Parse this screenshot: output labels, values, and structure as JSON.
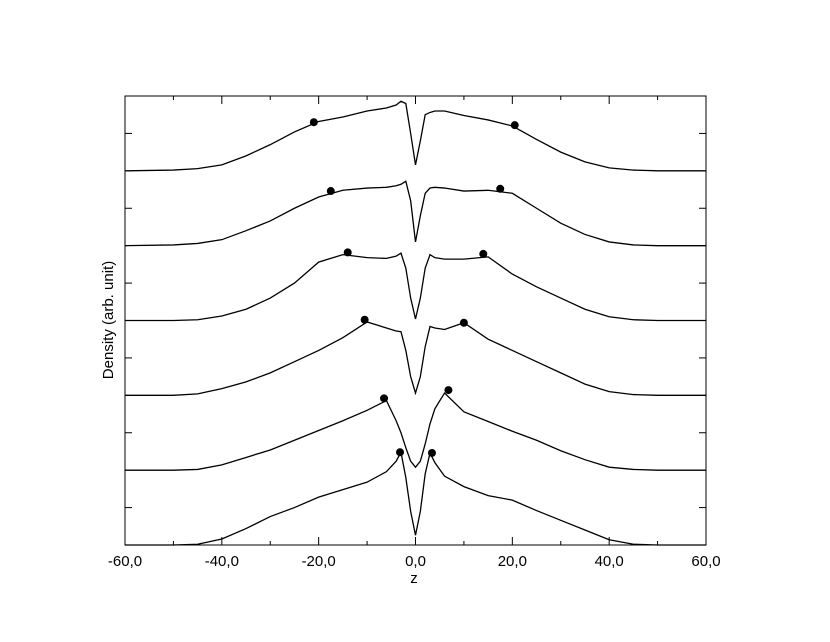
{
  "chart_data": {
    "type": "line",
    "xlabel": "z",
    "ylabel": "Density (arb. unit)",
    "xlim": [
      -60,
      60
    ],
    "ylim": [
      0,
      6
    ],
    "xticks": [
      {
        "value": -60,
        "label": "-60,0"
      },
      {
        "value": -40,
        "label": "-40,0"
      },
      {
        "value": -20,
        "label": "-20,0"
      },
      {
        "value": 0,
        "label": "0,0"
      },
      {
        "value": 20,
        "label": "20,0"
      },
      {
        "value": 40,
        "label": "40,0"
      },
      {
        "value": 60,
        "label": "60,0"
      }
    ],
    "xminorticks": [
      -50,
      -30,
      -10,
      10,
      30,
      50
    ],
    "yticks": [
      0.5,
      1.5,
      2.5,
      3.5,
      4.5,
      5.5
    ],
    "ytick_labels": false,
    "grid": false,
    "x": [
      -60,
      -50,
      -45,
      -40,
      -35,
      -30,
      -25,
      -20,
      -15,
      -10,
      -6,
      -4,
      -3,
      -2,
      -1,
      0,
      1,
      2,
      3,
      4,
      6,
      10,
      15,
      20,
      25,
      30,
      35,
      40,
      45,
      50,
      60
    ],
    "series": [
      {
        "color": "#000000",
        "values": [
          0,
          0,
          0.01,
          0.08,
          0.22,
          0.38,
          0.5,
          0.64,
          0.74,
          0.84,
          0.98,
          1.12,
          1.24,
          0.9,
          0.45,
          0.13,
          0.45,
          0.95,
          1.23,
          1.1,
          0.92,
          0.78,
          0.66,
          0.6,
          0.46,
          0.33,
          0.2,
          0.07,
          0.01,
          0,
          0
        ],
        "markers": {
          "x": [
            -3.2,
            3.4
          ],
          "y": [
            1.24,
            1.23
          ]
        }
      },
      {
        "color": "#000000",
        "values": [
          1,
          1,
          1.01,
          1.07,
          1.17,
          1.27,
          1.4,
          1.53,
          1.66,
          1.8,
          1.93,
          1.66,
          1.5,
          1.3,
          1.12,
          1.04,
          1.12,
          1.35,
          1.62,
          1.82,
          2.03,
          1.78,
          1.65,
          1.52,
          1.4,
          1.26,
          1.14,
          1.04,
          1.01,
          1,
          1
        ],
        "markers": {
          "x": [
            -6.5,
            6.8
          ],
          "y": [
            1.96,
            2.07
          ]
        }
      },
      {
        "color": "#000000",
        "values": [
          2,
          2,
          2.02,
          2.09,
          2.18,
          2.3,
          2.45,
          2.6,
          2.77,
          2.98,
          2.9,
          2.86,
          2.85,
          2.6,
          2.25,
          2.03,
          2.25,
          2.65,
          2.92,
          2.9,
          2.88,
          2.97,
          2.75,
          2.6,
          2.45,
          2.3,
          2.15,
          2.05,
          2.01,
          2,
          2
        ],
        "markers": {
          "x": [
            -10.5,
            10
          ],
          "y": [
            3.01,
            2.97
          ]
        }
      },
      {
        "color": "#000000",
        "values": [
          3,
          3,
          3.01,
          3.06,
          3.15,
          3.3,
          3.5,
          3.78,
          3.88,
          3.84,
          3.83,
          3.86,
          3.9,
          3.7,
          3.3,
          3.02,
          3.3,
          3.7,
          3.88,
          3.84,
          3.82,
          3.82,
          3.85,
          3.62,
          3.45,
          3.3,
          3.15,
          3.05,
          3.01,
          3,
          3
        ],
        "markers": {
          "x": [
            -14,
            14
          ],
          "y": [
            3.91,
            3.89
          ]
        }
      },
      {
        "color": "#000000",
        "values": [
          4,
          4.01,
          4.03,
          4.08,
          4.2,
          4.33,
          4.5,
          4.65,
          4.74,
          4.77,
          4.78,
          4.8,
          4.82,
          4.86,
          4.6,
          4.05,
          4.4,
          4.7,
          4.77,
          4.78,
          4.77,
          4.73,
          4.74,
          4.7,
          4.5,
          4.3,
          4.15,
          4.05,
          4.01,
          4,
          4
        ],
        "markers": {
          "x": [
            -17.5,
            17.5
          ],
          "y": [
            4.73,
            4.76
          ]
        }
      },
      {
        "color": "#000000",
        "values": [
          5,
          5.01,
          5.03,
          5.08,
          5.2,
          5.35,
          5.52,
          5.66,
          5.72,
          5.8,
          5.84,
          5.88,
          5.93,
          5.9,
          5.5,
          5.08,
          5.4,
          5.75,
          5.78,
          5.8,
          5.8,
          5.74,
          5.68,
          5.6,
          5.42,
          5.25,
          5.12,
          5.04,
          5.01,
          5,
          5
        ],
        "markers": {
          "x": [
            -21,
            20.5
          ],
          "y": [
            5.65,
            5.61
          ]
        }
      }
    ]
  }
}
